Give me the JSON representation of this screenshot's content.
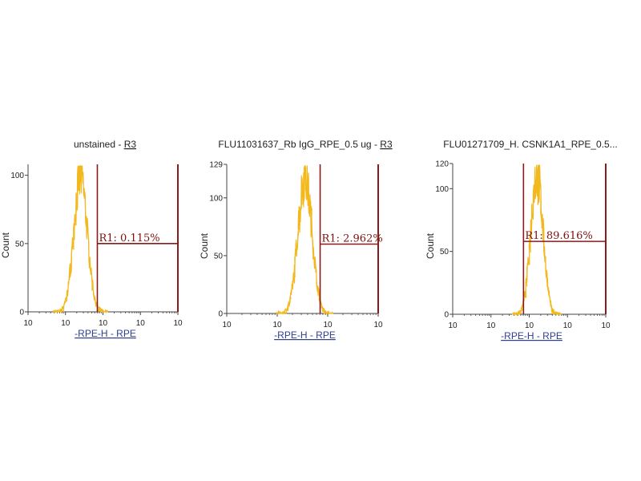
{
  "colors": {
    "histogram": "#f2b81c",
    "gate": "#8b1a1a",
    "axis": "#444444",
    "xlabel": "#2f3f8f"
  },
  "chart_data": [
    {
      "type": "histogram",
      "title": "unstained",
      "title_gate": "R3",
      "xlabel": "-RPE-H - RPE",
      "ylabel": "Count",
      "ylim": [
        0,
        108
      ],
      "y_ticks": [
        "0",
        "50",
        "100"
      ],
      "y_tick_values": [
        0,
        50,
        100
      ],
      "x_scale": "log",
      "x_ticks": [
        "10",
        "10",
        "10",
        "10",
        "10"
      ],
      "gate": {
        "name": "R1",
        "label": "R1: 0.115%",
        "x_start_decade": 1.85,
        "x_end_decade": 4.0,
        "y_level": 50
      },
      "histogram_peak_decade": 1.4,
      "histogram_peak_count": 105,
      "histogram_width_decades": 0.18
    },
    {
      "type": "histogram",
      "title": "FLU11031637_Rb IgG_RPE_0.5 ug",
      "title_gate": "R3",
      "xlabel": "-RPE-H - RPE",
      "ylabel": "Count",
      "ylim": [
        0,
        129
      ],
      "y_ticks": [
        "0",
        "50",
        "100",
        "129"
      ],
      "y_tick_values": [
        0,
        50,
        100,
        129
      ],
      "x_scale": "log",
      "x_ticks": [
        "10",
        "10",
        "10",
        "10"
      ],
      "gate": {
        "name": "R1",
        "label": "R1: 2.962%",
        "x_start_decade": 1.85,
        "x_end_decade": 3.0,
        "y_level": 60
      },
      "histogram_peak_decade": 1.55,
      "histogram_peak_count": 125,
      "histogram_width_decades": 0.14
    },
    {
      "type": "histogram",
      "title": "FLU01271709_H. CSNK1A1_RPE_0.5...",
      "title_gate": "",
      "xlabel": "-RPE-H - RPE",
      "ylabel": "Count",
      "ylim": [
        0,
        120
      ],
      "y_ticks": [
        "0",
        "50",
        "100",
        "120"
      ],
      "y_tick_values": [
        0,
        50,
        100,
        120
      ],
      "x_scale": "log",
      "x_ticks": [
        "10",
        "10",
        "10",
        "10",
        "10"
      ],
      "gate": {
        "name": "R1",
        "label": "R1: 89.616%",
        "x_start_decade": 1.85,
        "x_end_decade": 4.0,
        "y_level": 58
      },
      "histogram_peak_decade": 2.2,
      "histogram_peak_count": 118,
      "histogram_width_decades": 0.16
    }
  ]
}
